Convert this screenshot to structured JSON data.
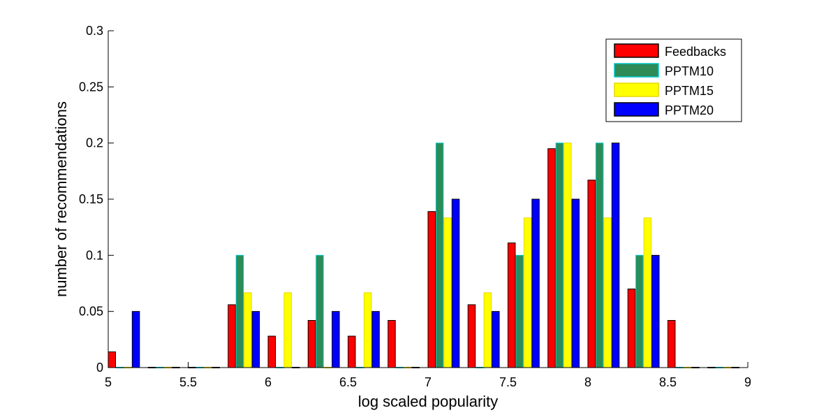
{
  "chart_data": {
    "type": "bar",
    "title": "",
    "xlabel": "log scaled popularity",
    "ylabel": "number of recommendations",
    "xlim": [
      5,
      9
    ],
    "ylim": [
      0,
      0.3
    ],
    "x_ticks": [
      5,
      5.5,
      6,
      6.5,
      7,
      7.5,
      8,
      8.5,
      9
    ],
    "x_tick_labels": [
      "5",
      "5.5",
      "6",
      "6.5",
      "7",
      "7.5",
      "8",
      "8.5",
      "9"
    ],
    "y_ticks": [
      0,
      0.05,
      0.1,
      0.15,
      0.2,
      0.25,
      0.3
    ],
    "y_tick_labels": [
      "0",
      "0.05",
      "0.1",
      "0.15",
      "0.2",
      "0.25",
      "0.3"
    ],
    "grid": false,
    "legend_position": "top-right",
    "x": [
      5.1,
      5.35,
      5.6,
      5.85,
      6.1,
      6.35,
      6.6,
      6.85,
      7.1,
      7.35,
      7.6,
      7.85,
      8.1,
      8.35,
      8.6,
      8.85
    ],
    "series": [
      {
        "name": "Feedbacks",
        "color": "#ff0000",
        "edge": "#000000",
        "values": [
          0.014,
          0,
          0,
          0.056,
          0.028,
          0.042,
          0.028,
          0.042,
          0.139,
          0.056,
          0.111,
          0.195,
          0.167,
          0.07,
          0.042,
          0
        ]
      },
      {
        "name": "PPTM10",
        "color": "#2e8b57",
        "edge": "#00c8c8",
        "values": [
          0,
          0,
          0,
          0.1,
          0,
          0.1,
          0,
          0,
          0.2,
          0,
          0.1,
          0.2,
          0.2,
          0.1,
          0,
          0
        ]
      },
      {
        "name": "PPTM15",
        "color": "#ffff00",
        "edge": "#e8d800",
        "values": [
          0,
          0,
          0,
          0.0667,
          0.0667,
          0,
          0.0667,
          0,
          0.1333,
          0.0667,
          0.1333,
          0.2,
          0.1333,
          0.1333,
          0,
          0
        ]
      },
      {
        "name": "PPTM20",
        "color": "#0000ff",
        "edge": "#000000",
        "values": [
          0.05,
          0,
          0,
          0.05,
          0,
          0.05,
          0.05,
          0,
          0.15,
          0.05,
          0.15,
          0.15,
          0.2,
          0.1,
          0,
          0
        ]
      }
    ]
  }
}
